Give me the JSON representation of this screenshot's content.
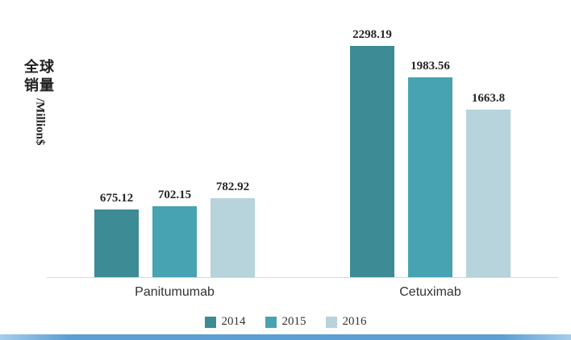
{
  "page": {
    "background": "#ffffff",
    "accent_strip_color": "#5b9fd4"
  },
  "chart_data": {
    "type": "bar",
    "title": "",
    "ylabel": "全球销量/Million$",
    "ylabel_zh": "全球销量",
    "ylabel_en": "/Million$",
    "categories": [
      "Panitumumab",
      "Cetuximab"
    ],
    "series": [
      {
        "name": "2014",
        "color": "#3d8b95",
        "values": [
          675.12,
          2298.19
        ],
        "labels": [
          "675.12",
          "2298.19"
        ]
      },
      {
        "name": "2015",
        "color": "#47a3b1",
        "values": [
          702.15,
          1983.56
        ],
        "labels": [
          "702.15",
          "1983.56"
        ]
      },
      {
        "name": "2016",
        "color": "#b7d3dc",
        "values": [
          782.92,
          1663.8
        ],
        "labels": [
          "782.92",
          "1663.8"
        ]
      }
    ],
    "ymax": 2400,
    "ylim": [
      0,
      2400
    ],
    "grid": false,
    "legend_position": "bottom",
    "axis_line_color": "#d8d8d8"
  }
}
